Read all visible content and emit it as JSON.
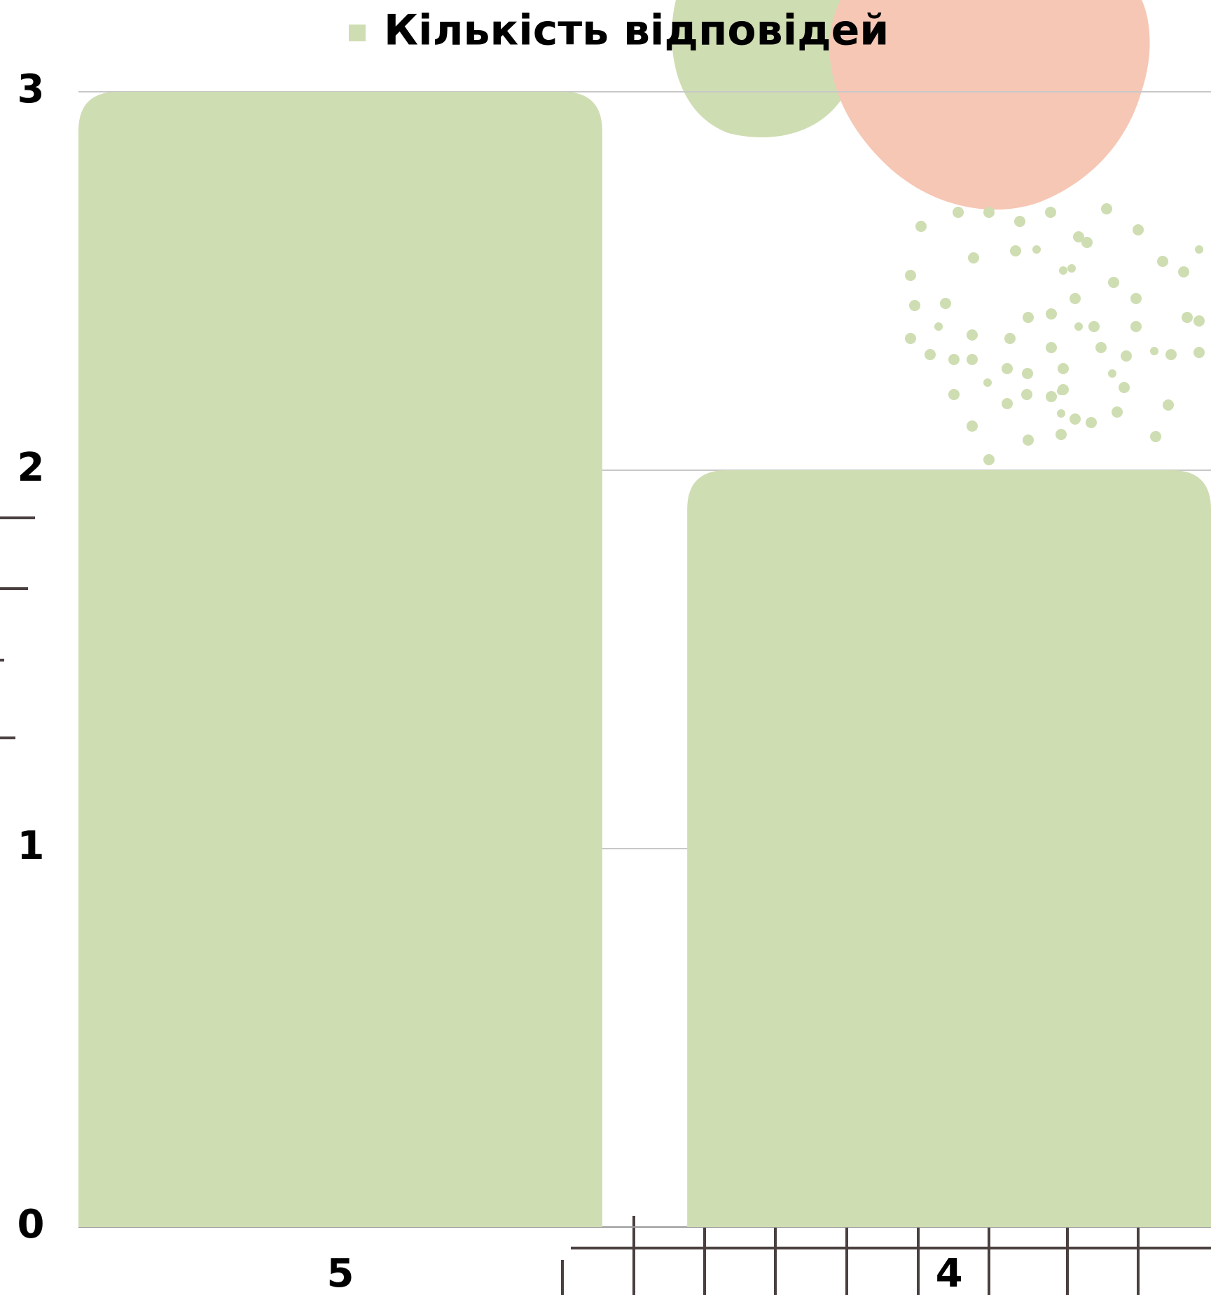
{
  "chart_data": {
    "type": "bar",
    "categories": [
      "5",
      "4"
    ],
    "series": [
      {
        "name": "Кількість відповідей",
        "color": "#cfddb2",
        "values": [
          3,
          2
        ]
      }
    ],
    "ylim": [
      0,
      3
    ],
    "yticks": [
      0,
      1,
      2,
      3
    ],
    "grid": true
  }
}
